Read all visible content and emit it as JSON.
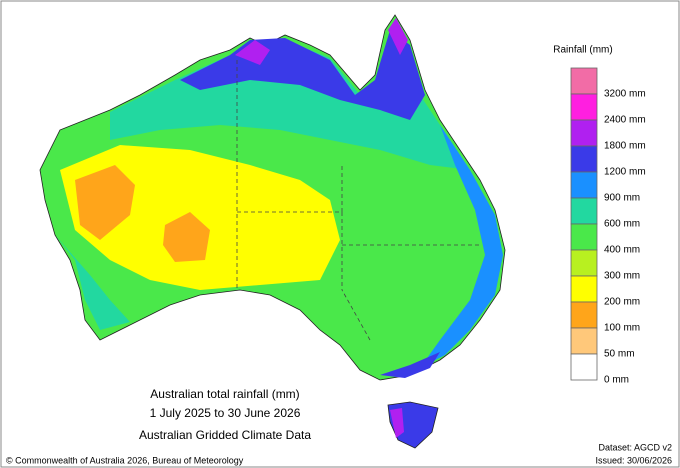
{
  "legend": {
    "title": "Rainfall (mm)",
    "labels": [
      "3200 mm",
      "2400 mm",
      "1800 mm",
      "1200 mm",
      "900 mm",
      "600 mm",
      "400 mm",
      "300 mm",
      "200 mm",
      "100 mm",
      "50 mm",
      "0 mm"
    ],
    "colors": [
      "#f26ca6",
      "#ff1fe0",
      "#b020f0",
      "#3a3ae8",
      "#1a90ff",
      "#22d8a0",
      "#4ae84a",
      "#b8f020",
      "#ffff00",
      "#ffa51a",
      "#ffc87a",
      "#ffffff"
    ]
  },
  "caption": {
    "lines": [
      "Australian total rainfall (mm)",
      "1 July 2025 to 30 June 2026",
      "Australian Gridded Climate Data"
    ]
  },
  "footer": {
    "copyright": "© Commonwealth of Australia 2026, Bureau of Meteorology",
    "dataset": "Dataset: AGCD v2",
    "issued": "Issued: 30/06/2026"
  }
}
